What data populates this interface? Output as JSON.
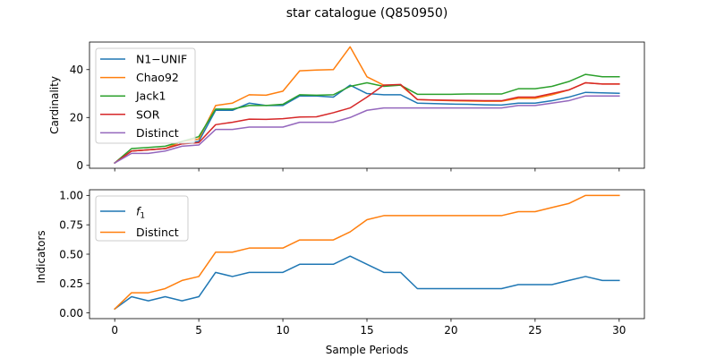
{
  "figure": {
    "title": "star catalogue (Q850950)"
  },
  "chart_data": [
    {
      "type": "line",
      "xlabel": "",
      "ylabel": "Cardinality",
      "xlim": [
        -1.5,
        31.5
      ],
      "ylim": [
        -1.2,
        51.5
      ],
      "xticks": [
        0,
        5,
        10,
        15,
        20,
        25,
        30
      ],
      "yticks": [
        0,
        20,
        40
      ],
      "show_x_tick_labels": false,
      "grid": false,
      "legend_position": "upper-left",
      "x": [
        0,
        1,
        2,
        3,
        4,
        5,
        6,
        7,
        8,
        9,
        10,
        11,
        12,
        13,
        14,
        15,
        16,
        17,
        18,
        19,
        20,
        21,
        22,
        23,
        24,
        25,
        26,
        27,
        28,
        29,
        30
      ],
      "series": [
        {
          "name": "N1−UNIF",
          "color": "#1f77b4",
          "values": [
            1,
            6,
            6.5,
            7,
            9,
            10,
            23,
            23,
            26,
            25,
            25,
            29,
            29,
            28.5,
            33.5,
            30,
            29.5,
            29.5,
            26,
            25.8,
            25.6,
            25.5,
            25.3,
            25.2,
            26,
            26,
            27,
            28.5,
            30.5,
            30.3,
            30.1
          ]
        },
        {
          "name": "Chao92",
          "color": "#ff7f0e",
          "values": [
            1,
            6,
            6.5,
            7,
            10,
            11,
            25,
            26,
            29.5,
            29.3,
            31,
            39.5,
            39.8,
            40,
            49.5,
            37,
            33.5,
            33.5,
            27.5,
            27.2,
            27,
            26.9,
            26.8,
            26.8,
            28,
            28,
            29.5,
            31.5,
            34.5,
            34,
            34
          ]
        },
        {
          "name": "Jack1",
          "color": "#2ca02c",
          "values": [
            1,
            7,
            7.5,
            8,
            10,
            12,
            23.5,
            23.5,
            25,
            25,
            25.5,
            29.5,
            29.3,
            29.5,
            33,
            34.5,
            33,
            33.5,
            29.7,
            29.7,
            29.7,
            29.8,
            29.8,
            29.8,
            32,
            32,
            33,
            35,
            38,
            37,
            37
          ]
        },
        {
          "name": "SOR",
          "color": "#d62728",
          "values": [
            1,
            6,
            6.5,
            7,
            9,
            9.5,
            17,
            18,
            19.3,
            19.2,
            19.5,
            20.2,
            20.3,
            22,
            24,
            28.5,
            33.5,
            33.8,
            27.5,
            27.3,
            27.2,
            27.1,
            27,
            27,
            28.5,
            28.5,
            30,
            31.5,
            34.5,
            34,
            34
          ]
        },
        {
          "name": "Distinct",
          "color": "#9467bd",
          "values": [
            1,
            5,
            5,
            6,
            8,
            8.5,
            15,
            15,
            16,
            16,
            16,
            18,
            18,
            18,
            20,
            23,
            24,
            24,
            24,
            24,
            24,
            24,
            24,
            24,
            25,
            25,
            26,
            27,
            29,
            29,
            29
          ]
        }
      ]
    },
    {
      "type": "line",
      "xlabel": "Sample Periods",
      "ylabel": "Indicators",
      "xlim": [
        -1.5,
        31.5
      ],
      "ylim": [
        -0.0483,
        1.0483
      ],
      "xticks": [
        0,
        5,
        10,
        15,
        20,
        25,
        30
      ],
      "yticks": [
        0.0,
        0.25,
        0.5,
        0.75,
        1.0
      ],
      "ytick_labels": [
        "0.00",
        "0.25",
        "0.50",
        "0.75",
        "1.00"
      ],
      "show_x_tick_labels": true,
      "grid": false,
      "legend_position": "upper-left",
      "x": [
        0,
        1,
        2,
        3,
        4,
        5,
        6,
        7,
        8,
        9,
        10,
        11,
        12,
        13,
        14,
        15,
        16,
        17,
        18,
        19,
        20,
        21,
        22,
        23,
        24,
        25,
        26,
        27,
        28,
        29,
        30
      ],
      "series": [
        {
          "name": "f₁",
          "color": "#1f77b4",
          "values": [
            0.034,
            0.138,
            0.103,
            0.138,
            0.103,
            0.138,
            0.345,
            0.31,
            0.345,
            0.345,
            0.345,
            0.414,
            0.414,
            0.414,
            0.483,
            0.414,
            0.345,
            0.345,
            0.207,
            0.207,
            0.207,
            0.207,
            0.207,
            0.207,
            0.241,
            0.241,
            0.241,
            0.276,
            0.31,
            0.276,
            0.276
          ]
        },
        {
          "name": "Distinct",
          "color": "#ff7f0e",
          "values": [
            0.034,
            0.172,
            0.172,
            0.207,
            0.276,
            0.31,
            0.517,
            0.517,
            0.552,
            0.552,
            0.552,
            0.621,
            0.621,
            0.621,
            0.69,
            0.793,
            0.828,
            0.828,
            0.828,
            0.828,
            0.828,
            0.828,
            0.828,
            0.828,
            0.862,
            0.862,
            0.897,
            0.931,
            1.0,
            1.0,
            1.0
          ]
        }
      ]
    }
  ]
}
